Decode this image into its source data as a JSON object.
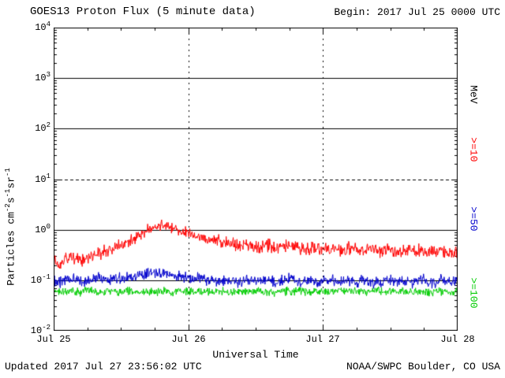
{
  "header": {
    "title": "GOES13 Proton Flux (5 minute data)",
    "begin": "Begin: 2017 Jul 25 0000 UTC"
  },
  "footer": {
    "updated": "Updated 2017 Jul 27 23:56:02 UTC",
    "source": "NOAA/SWPC Boulder, CO USA"
  },
  "chart_data": {
    "type": "line",
    "title": "GOES13 Proton Flux (5 minute data)",
    "subtitle": "Begin: 2017 Jul 25 0000 UTC",
    "xlabel": "Universal Time",
    "ylabel": "Particles cm-2s-1sr-1",
    "ylabel_parts": [
      {
        "text": "Particles cm"
      },
      {
        "sup": "-2"
      },
      {
        "text": "s"
      },
      {
        "sup": "-1"
      },
      {
        "text": "sr"
      },
      {
        "sup": "-1"
      }
    ],
    "x_ticks": [
      "Jul 25",
      "Jul 26",
      "Jul 27",
      "Jul 28"
    ],
    "x_hours_total": 72,
    "sample_interval_minutes": 5,
    "ylim_log10": [
      -2,
      4
    ],
    "y_tick_exponents": [
      4,
      3,
      2,
      1,
      0,
      -1,
      -2
    ],
    "grid": {
      "solid_decades": [
        3,
        2,
        0,
        -1
      ],
      "dashed_decades": [
        1
      ],
      "vertical_dotted_hours": [
        24,
        48
      ]
    },
    "legend_position": "right-rotated",
    "right_axis": {
      "unit": "MeV",
      "series_labels": [
        {
          "label": ">=10",
          "color": "#ff0000"
        },
        {
          "label": ">=50",
          "color": "#0000cc"
        },
        {
          "label": ">=100",
          "color": "#00cc00"
        }
      ]
    },
    "series": [
      {
        "name": ">=10 MeV",
        "color": "#ff0000",
        "noise_log10": 0.15,
        "hourly_values": [
          0.25,
          0.22,
          0.26,
          0.3,
          0.27,
          0.24,
          0.27,
          0.3,
          0.33,
          0.36,
          0.4,
          0.45,
          0.5,
          0.55,
          0.62,
          0.72,
          0.85,
          1.0,
          1.1,
          1.2,
          1.15,
          1.05,
          0.95,
          0.9,
          0.85,
          0.8,
          0.75,
          0.7,
          0.65,
          0.6,
          0.57,
          0.55,
          0.52,
          0.5,
          0.5,
          0.47,
          0.45,
          0.46,
          0.5,
          0.46,
          0.42,
          0.45,
          0.5,
          0.46,
          0.42,
          0.41,
          0.44,
          0.41,
          0.4,
          0.41,
          0.43,
          0.39,
          0.41,
          0.43,
          0.41,
          0.39,
          0.41,
          0.39,
          0.37,
          0.39,
          0.41,
          0.39,
          0.37,
          0.39,
          0.41,
          0.39,
          0.37,
          0.36,
          0.37,
          0.39,
          0.37,
          0.36,
          0.35
        ]
      },
      {
        "name": ">=50 MeV",
        "color": "#0000cc",
        "noise_log10": 0.13,
        "hourly_values": [
          0.1,
          0.09,
          0.1,
          0.11,
          0.1,
          0.09,
          0.1,
          0.1,
          0.11,
          0.1,
          0.1,
          0.11,
          0.11,
          0.12,
          0.12,
          0.13,
          0.13,
          0.14,
          0.14,
          0.13,
          0.13,
          0.12,
          0.12,
          0.12,
          0.11,
          0.11,
          0.11,
          0.1,
          0.1,
          0.1,
          0.1,
          0.1,
          0.1,
          0.09,
          0.1,
          0.1,
          0.09,
          0.1,
          0.1,
          0.1,
          0.09,
          0.1,
          0.11,
          0.1,
          0.09,
          0.1,
          0.1,
          0.09,
          0.1,
          0.1,
          0.1,
          0.09,
          0.1,
          0.1,
          0.09,
          0.1,
          0.1,
          0.09,
          0.09,
          0.1,
          0.1,
          0.09,
          0.1,
          0.1,
          0.09,
          0.1,
          0.1,
          0.09,
          0.09,
          0.1,
          0.1,
          0.09,
          0.1
        ]
      },
      {
        "name": ">=100 MeV",
        "color": "#00cc00",
        "noise_log10": 0.1,
        "hourly_values": [
          0.06,
          0.058,
          0.062,
          0.06,
          0.057,
          0.06,
          0.063,
          0.06,
          0.058,
          0.06,
          0.062,
          0.06,
          0.058,
          0.061,
          0.06,
          0.058,
          0.062,
          0.06,
          0.059,
          0.061,
          0.06,
          0.058,
          0.06,
          0.062,
          0.06,
          0.058,
          0.06,
          0.061,
          0.059,
          0.06,
          0.062,
          0.06,
          0.058,
          0.06,
          0.061,
          0.059,
          0.06,
          0.062,
          0.06,
          0.058,
          0.06,
          0.061,
          0.059,
          0.06,
          0.062,
          0.06,
          0.058,
          0.06,
          0.061,
          0.059,
          0.06,
          0.062,
          0.06,
          0.058,
          0.06,
          0.061,
          0.059,
          0.06,
          0.062,
          0.06,
          0.058,
          0.06,
          0.061,
          0.059,
          0.06,
          0.062,
          0.06,
          0.058,
          0.06,
          0.061,
          0.059,
          0.06,
          0.058
        ]
      }
    ]
  }
}
